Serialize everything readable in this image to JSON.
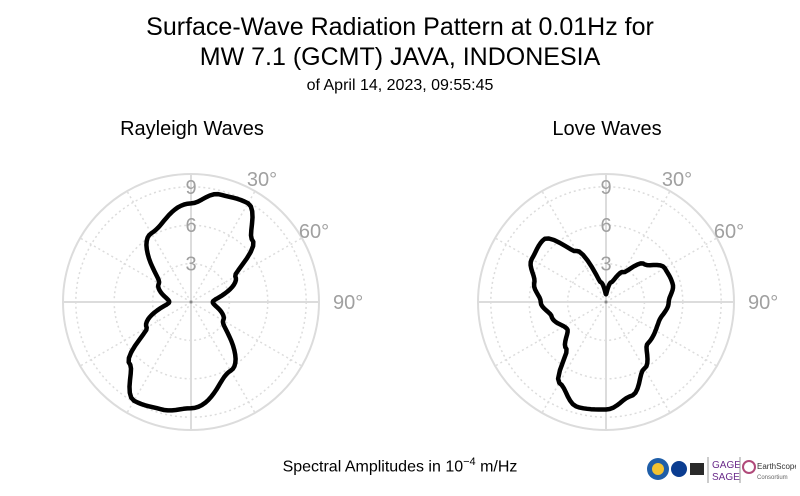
{
  "header": {
    "title_line1": "Surface-Wave Radiation Pattern at 0.01Hz for",
    "title_line2": "MW 7.1 (GCMT) JAVA, INDONESIA",
    "subtitle": "of April 14, 2023, 09:55:45"
  },
  "footer": {
    "label_prefix": "Spectral Amplitudes in ",
    "label_base": "10",
    "label_exp": "−4",
    "label_unit": " m/Hz"
  },
  "logos": {
    "gage": "GAGE",
    "sage": "SAGE",
    "earthscope": "EarthScope",
    "consortium": "Consortium"
  },
  "colors": {
    "curve": "#000000",
    "grid": "#dcdcdc",
    "label": "#a0a0a0"
  },
  "chart_data": [
    {
      "type": "polar",
      "title": "Rayleigh Waves",
      "r_ticks": [
        "3",
        "6",
        "9"
      ],
      "r_max": 10,
      "angle_labels": [
        "30°",
        "60°",
        "90°"
      ],
      "angle_ticks_deg": [
        30,
        60,
        90
      ],
      "points_deg_amp": [
        [
          0,
          7.7
        ],
        [
          15,
          8.7
        ],
        [
          30,
          8.9
        ],
        [
          45,
          6.8
        ],
        [
          60,
          4.0
        ],
        [
          90,
          1.7
        ],
        [
          120,
          2.9
        ],
        [
          150,
          6.2
        ],
        [
          180,
          8.3
        ],
        [
          195,
          8.7
        ],
        [
          210,
          8.9
        ],
        [
          225,
          6.8
        ],
        [
          240,
          4.0
        ],
        [
          270,
          1.7
        ],
        [
          300,
          2.9
        ],
        [
          330,
          6.2
        ]
      ]
    },
    {
      "type": "polar",
      "title": "Love Waves",
      "r_ticks": [
        "3",
        "6",
        "9"
      ],
      "r_max": 10,
      "angle_labels": [
        "30°",
        "60°",
        "90°"
      ],
      "angle_ticks_deg": [
        30,
        60,
        90
      ],
      "points_deg_amp": [
        [
          0,
          0.6
        ],
        [
          15,
          1.6
        ],
        [
          30,
          2.7
        ],
        [
          45,
          4.2
        ],
        [
          60,
          5.3
        ],
        [
          75,
          5.4
        ],
        [
          90,
          4.9
        ],
        [
          110,
          4.4
        ],
        [
          135,
          4.6
        ],
        [
          150,
          6.0
        ],
        [
          165,
          7.6
        ],
        [
          180,
          8.4
        ],
        [
          195,
          8.5
        ],
        [
          210,
          7.3
        ],
        [
          220,
          4.8
        ],
        [
          235,
          3.7
        ],
        [
          255,
          4.4
        ],
        [
          270,
          5.1
        ],
        [
          285,
          5.8
        ],
        [
          300,
          6.7
        ],
        [
          315,
          6.9
        ],
        [
          330,
          4.6
        ],
        [
          345,
          1.6
        ]
      ]
    }
  ]
}
